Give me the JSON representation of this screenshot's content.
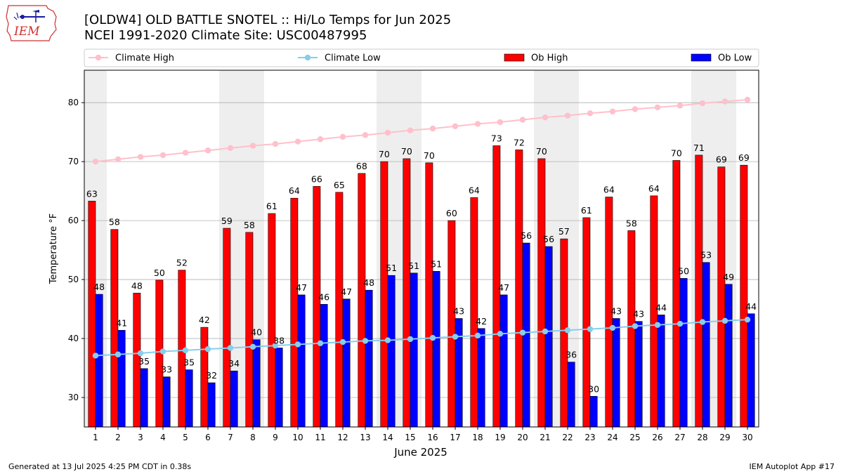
{
  "header": {
    "title_line1": "[OLDW4] OLD BATTLE SNOTEL :: Hi/Lo Temps for Jun 2025",
    "title_line2": "NCEI 1991-2020 Climate Site: USC00487995"
  },
  "logo": {
    "text": "IEM"
  },
  "footer": {
    "left": "Generated at 13 Jul 2025 4:25 PM CDT in 0.38s",
    "right": "IEM Autoplot App #17"
  },
  "colors": {
    "ob_high": "#ff0000",
    "ob_low": "#0000ff",
    "climate_high": "#ffc0cb",
    "climate_low": "#87ceeb",
    "weekend_shade": "#eeeeee",
    "grid": "#b0b0b0"
  },
  "chart_data": {
    "type": "bar",
    "title": "[OLDW4] OLD BATTLE SNOTEL :: Hi/Lo Temps for Jun 2025",
    "xlabel": "June 2025",
    "ylabel": "Temperature °F",
    "ylim": [
      25,
      85.5
    ],
    "yticks": [
      30,
      40,
      50,
      60,
      70,
      80
    ],
    "grid": true,
    "legend_position": "top",
    "categories": [
      "1",
      "2",
      "3",
      "4",
      "5",
      "6",
      "7",
      "8",
      "9",
      "10",
      "11",
      "12",
      "13",
      "14",
      "15",
      "16",
      "17",
      "18",
      "19",
      "20",
      "21",
      "22",
      "23",
      "24",
      "25",
      "26",
      "27",
      "28",
      "29",
      "30"
    ],
    "weekend_days": [
      1,
      7,
      8,
      14,
      15,
      21,
      22,
      28,
      29
    ],
    "series": [
      {
        "name": "Ob High",
        "kind": "bar",
        "values": [
          63.3,
          58.5,
          47.7,
          49.9,
          51.6,
          41.9,
          58.7,
          58.0,
          61.2,
          63.8,
          65.8,
          64.8,
          68.0,
          70.0,
          70.5,
          69.8,
          60.0,
          63.9,
          72.7,
          72.0,
          70.5,
          56.9,
          60.5,
          64.0,
          58.3,
          64.2,
          70.2,
          71.1,
          69.1,
          69.4
        ],
        "labels": [
          "63",
          "58",
          "48",
          "50",
          "52",
          "42",
          "59",
          "58",
          "61",
          "64",
          "66",
          "65",
          "68",
          "70",
          "70",
          "70",
          "60",
          "64",
          "73",
          "72",
          "70",
          "57",
          "61",
          "64",
          "58",
          "64",
          "70",
          "71",
          "69",
          "69"
        ]
      },
      {
        "name": "Ob Low",
        "kind": "bar",
        "values": [
          47.5,
          41.4,
          34.9,
          33.5,
          34.7,
          32.5,
          34.5,
          39.8,
          38.4,
          47.4,
          45.8,
          46.7,
          48.2,
          50.7,
          51.1,
          51.4,
          43.4,
          41.7,
          47.4,
          56.2,
          55.6,
          36.0,
          30.2,
          43.4,
          42.9,
          44.0,
          50.2,
          52.9,
          49.2,
          44.2
        ],
        "labels": [
          "48",
          "41",
          "35",
          "33",
          "35",
          "32",
          "34",
          "40",
          "38",
          "47",
          "46",
          "47",
          "48",
          "51",
          "51",
          "51",
          "43",
          "42",
          "47",
          "56",
          "56",
          "36",
          "30",
          "43",
          "43",
          "44",
          "50",
          "53",
          "49",
          "44"
        ]
      },
      {
        "name": "Climate High",
        "kind": "line",
        "values": [
          70.0,
          70.4,
          70.8,
          71.1,
          71.5,
          71.9,
          72.3,
          72.7,
          73.0,
          73.4,
          73.8,
          74.2,
          74.5,
          74.9,
          75.3,
          75.6,
          76.0,
          76.4,
          76.7,
          77.1,
          77.5,
          77.8,
          78.2,
          78.5,
          78.9,
          79.2,
          79.5,
          79.9,
          80.2,
          80.5
        ]
      },
      {
        "name": "Climate Low",
        "kind": "line",
        "values": [
          37.1,
          37.3,
          37.5,
          37.8,
          38.0,
          38.2,
          38.4,
          38.6,
          38.8,
          39.0,
          39.2,
          39.4,
          39.6,
          39.7,
          39.9,
          40.1,
          40.3,
          40.5,
          40.8,
          41.0,
          41.2,
          41.4,
          41.6,
          41.8,
          42.1,
          42.3,
          42.5,
          42.8,
          43.0,
          43.2
        ]
      }
    ]
  }
}
